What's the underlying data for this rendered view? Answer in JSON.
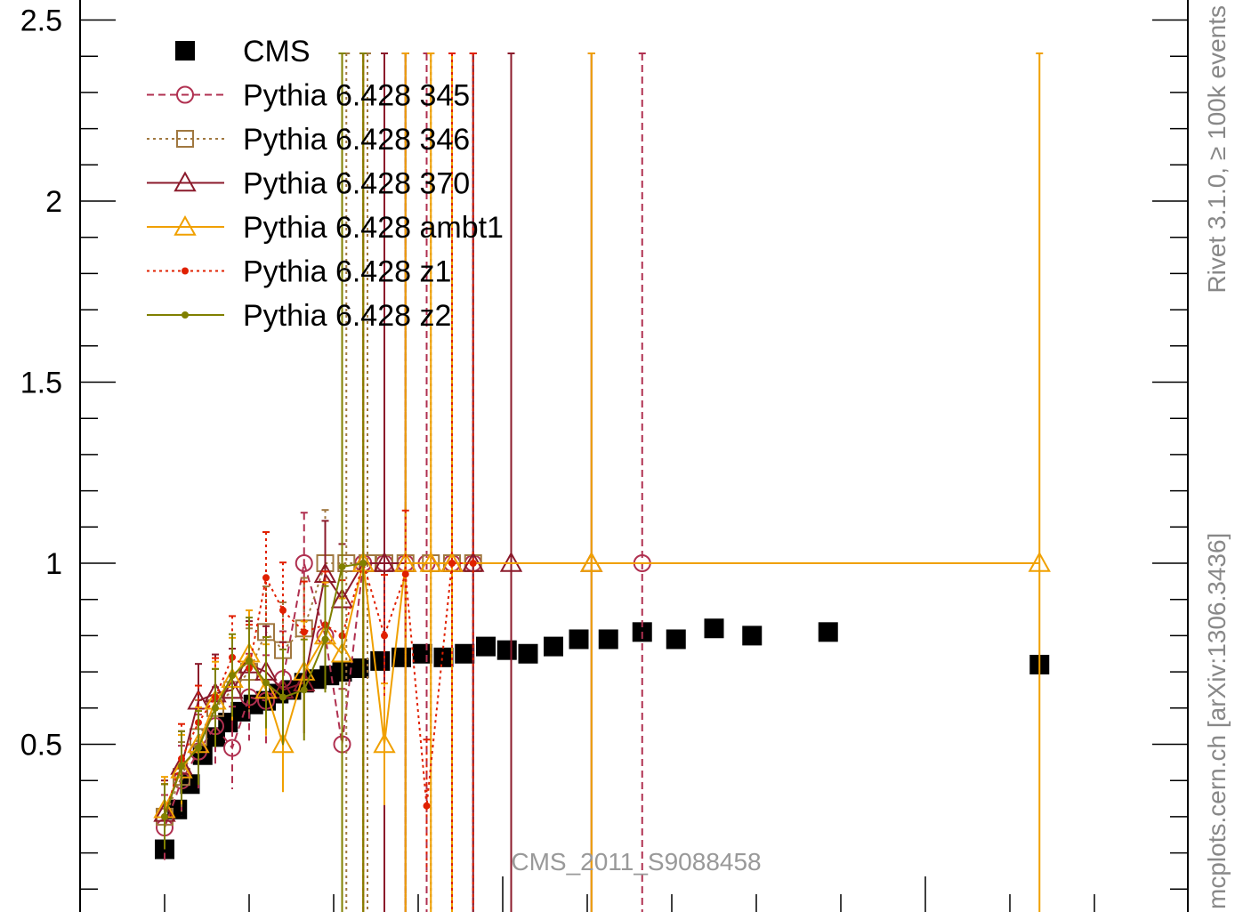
{
  "chart_data": {
    "type": "scatter",
    "watermark": "CMS_2011_S9088458",
    "side_label_top": "Rivet 3.1.0, ≥ 100k events",
    "side_label_bottom": "mcplots.cern.ch [arXiv:1306.3436]",
    "xlabel": "",
    "ylabel": "",
    "ylim": [
      0,
      2.6
    ],
    "xlim": [
      0,
      13
    ],
    "y_ticks": [
      {
        "value": 0.5,
        "label": "0.5"
      },
      {
        "value": 1,
        "label": "1"
      },
      {
        "value": 1.5,
        "label": "1.5"
      },
      {
        "value": 2,
        "label": "2"
      },
      {
        "value": 2.5,
        "label": "2.5"
      }
    ],
    "legend": {
      "placement": "top-left"
    },
    "series": [
      {
        "name": "CMS",
        "color": "#000000",
        "marker": "filled-square",
        "line": "none",
        "points": [
          [
            1.0,
            0.21
          ],
          [
            1.15,
            0.32
          ],
          [
            1.3,
            0.39
          ],
          [
            1.45,
            0.47
          ],
          [
            1.6,
            0.52
          ],
          [
            1.75,
            0.56
          ],
          [
            1.9,
            0.59
          ],
          [
            2.05,
            0.61
          ],
          [
            2.2,
            0.62
          ],
          [
            2.35,
            0.64
          ],
          [
            2.5,
            0.65
          ],
          [
            2.65,
            0.67
          ],
          [
            2.8,
            0.68
          ],
          [
            2.95,
            0.69
          ],
          [
            3.1,
            0.7
          ],
          [
            3.3,
            0.71
          ],
          [
            3.55,
            0.73
          ],
          [
            3.8,
            0.74
          ],
          [
            4.05,
            0.75
          ],
          [
            4.3,
            0.74
          ],
          [
            4.55,
            0.75
          ],
          [
            4.8,
            0.77
          ],
          [
            5.05,
            0.76
          ],
          [
            5.3,
            0.75
          ],
          [
            5.6,
            0.77
          ],
          [
            5.9,
            0.79
          ],
          [
            6.25,
            0.79
          ],
          [
            6.65,
            0.81
          ],
          [
            7.05,
            0.79
          ],
          [
            7.5,
            0.82
          ],
          [
            7.95,
            0.8
          ],
          [
            8.85,
            0.81
          ],
          [
            11.35,
            0.72
          ]
        ]
      },
      {
        "name": "Pythia 6.428 345",
        "color": "#b03050",
        "marker": "open-circle",
        "line": "dashed",
        "points": [
          [
            1.0,
            0.27
          ],
          [
            1.2,
            0.4
          ],
          [
            1.4,
            0.48
          ],
          [
            1.6,
            0.55
          ],
          [
            1.8,
            0.49
          ],
          [
            2.0,
            0.63
          ],
          [
            2.2,
            0.62
          ],
          [
            2.4,
            0.68
          ],
          [
            2.65,
            1.0
          ],
          [
            2.9,
            0.8
          ],
          [
            3.1,
            0.5
          ],
          [
            3.35,
            1.0
          ],
          [
            3.6,
            1.0
          ],
          [
            3.85,
            1.0
          ],
          [
            4.1,
            1.0
          ],
          [
            4.4,
            1.0
          ],
          [
            4.65,
            1.0
          ],
          [
            6.65,
            1.0
          ]
        ]
      },
      {
        "name": "Pythia 6.428 346",
        "color": "#a07840",
        "marker": "open-square",
        "line": "dotted",
        "points": [
          [
            1.0,
            0.3
          ],
          [
            1.2,
            0.41
          ],
          [
            1.4,
            0.52
          ],
          [
            1.6,
            0.6
          ],
          [
            1.8,
            0.65
          ],
          [
            2.0,
            0.7
          ],
          [
            2.2,
            0.81
          ],
          [
            2.4,
            0.76
          ],
          [
            2.65,
            0.82
          ],
          [
            2.9,
            1.0
          ],
          [
            3.15,
            1.0
          ],
          [
            3.4,
            1.0
          ],
          [
            3.6,
            1.0
          ],
          [
            3.85,
            1.0
          ],
          [
            4.15,
            1.0
          ],
          [
            4.4,
            1.0
          ],
          [
            4.65,
            1.0
          ]
        ]
      },
      {
        "name": "Pythia 6.428 370",
        "color": "#8b1a2b",
        "marker": "open-triangle",
        "line": "solid",
        "points": [
          [
            1.0,
            0.31
          ],
          [
            1.2,
            0.44
          ],
          [
            1.4,
            0.62
          ],
          [
            1.6,
            0.64
          ],
          [
            1.8,
            0.65
          ],
          [
            2.0,
            0.72
          ],
          [
            2.2,
            0.7
          ],
          [
            2.4,
            0.65
          ],
          [
            2.65,
            0.67
          ],
          [
            2.9,
            0.97
          ],
          [
            3.1,
            0.9
          ],
          [
            3.35,
            1.0
          ],
          [
            3.6,
            1.0
          ],
          [
            3.85,
            1.0
          ],
          [
            4.4,
            1.0
          ],
          [
            4.65,
            1.0
          ],
          [
            5.1,
            1.0
          ],
          [
            6.05,
            1.0
          ]
        ]
      },
      {
        "name": "Pythia 6.428 ambt1",
        "color": "#f0a000",
        "marker": "open-triangle",
        "line": "solid",
        "points": [
          [
            1.0,
            0.32
          ],
          [
            1.2,
            0.43
          ],
          [
            1.4,
            0.5
          ],
          [
            1.6,
            0.62
          ],
          [
            1.8,
            0.68
          ],
          [
            2.0,
            0.75
          ],
          [
            2.2,
            0.65
          ],
          [
            2.4,
            0.5
          ],
          [
            2.65,
            0.7
          ],
          [
            2.9,
            0.8
          ],
          [
            3.1,
            0.75
          ],
          [
            3.35,
            1.0
          ],
          [
            3.6,
            0.5
          ],
          [
            3.85,
            1.0
          ],
          [
            4.15,
            1.0
          ],
          [
            4.4,
            1.0
          ],
          [
            6.05,
            1.0
          ],
          [
            11.35,
            1.0
          ]
        ]
      },
      {
        "name": "Pythia 6.428 z1",
        "color": "#e02000",
        "marker": "small-dot",
        "line": "dotted",
        "points": [
          [
            1.0,
            0.3
          ],
          [
            1.2,
            0.46
          ],
          [
            1.4,
            0.56
          ],
          [
            1.6,
            0.63
          ],
          [
            1.8,
            0.74
          ],
          [
            2.0,
            0.71
          ],
          [
            2.2,
            0.96
          ],
          [
            2.4,
            0.87
          ],
          [
            2.65,
            0.81
          ],
          [
            2.9,
            0.83
          ],
          [
            3.1,
            0.8
          ],
          [
            3.35,
            1.0
          ],
          [
            3.6,
            0.8
          ],
          [
            3.85,
            0.97
          ],
          [
            4.1,
            0.33
          ],
          [
            4.4,
            1.0
          ],
          [
            4.65,
            1.0
          ]
        ]
      },
      {
        "name": "Pythia 6.428 z2",
        "color": "#808000",
        "marker": "small-dot",
        "line": "solid",
        "points": [
          [
            1.0,
            0.3
          ],
          [
            1.2,
            0.44
          ],
          [
            1.4,
            0.49
          ],
          [
            1.6,
            0.6
          ],
          [
            1.8,
            0.69
          ],
          [
            2.0,
            0.73
          ],
          [
            2.2,
            0.67
          ],
          [
            2.4,
            0.63
          ],
          [
            2.65,
            0.65
          ],
          [
            2.9,
            0.79
          ],
          [
            3.1,
            0.99
          ],
          [
            3.35,
            1.0
          ]
        ]
      }
    ]
  }
}
